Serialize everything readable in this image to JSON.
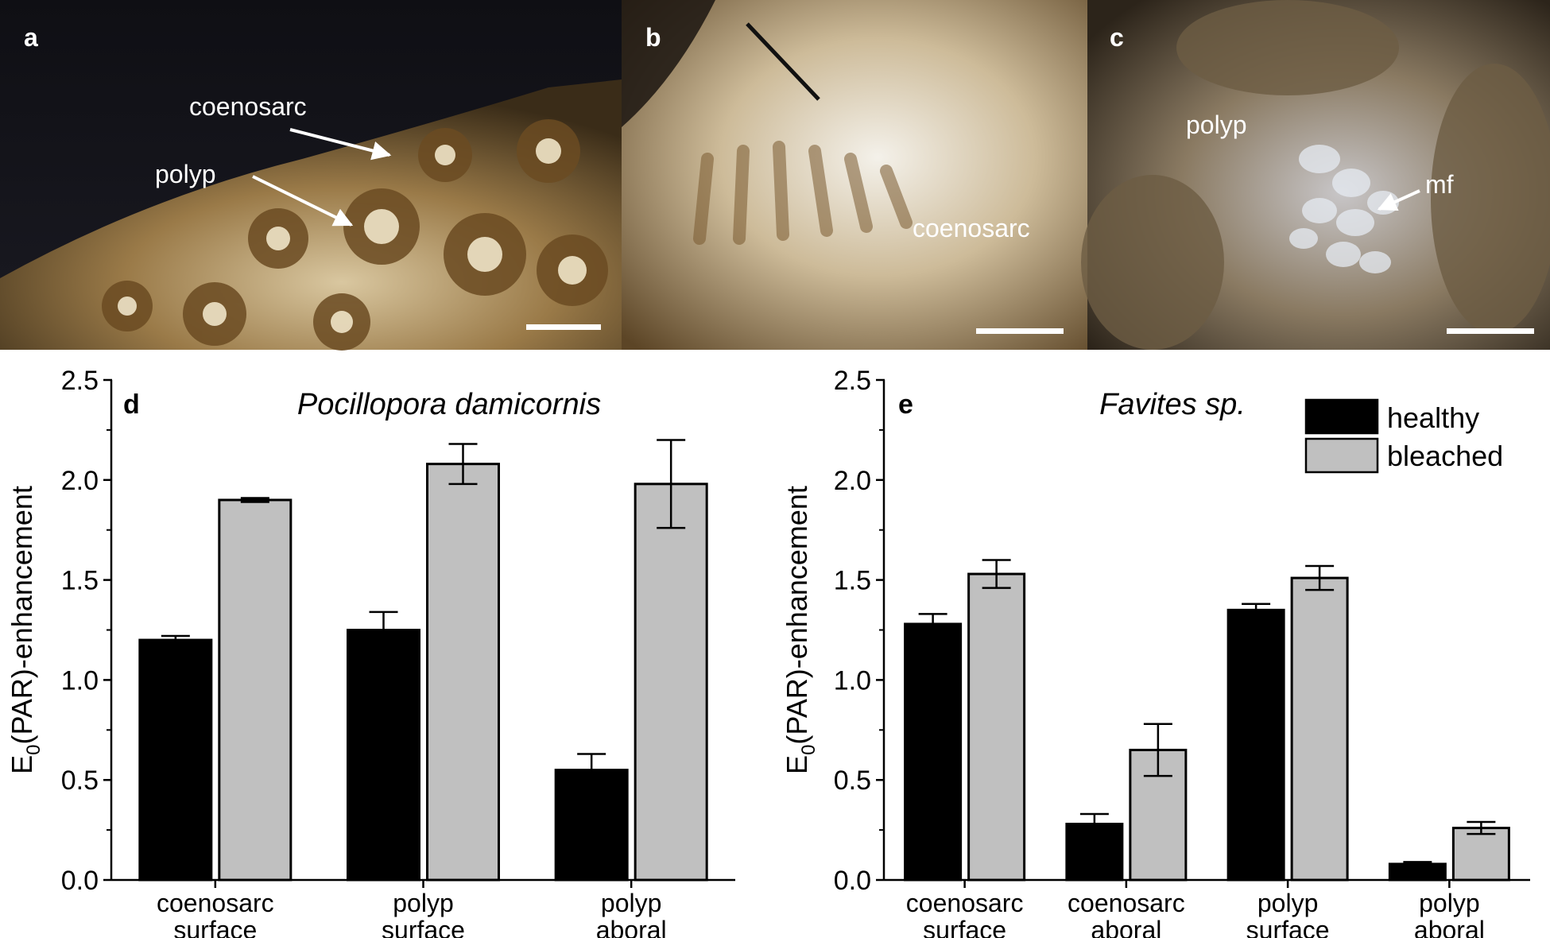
{
  "photos": [
    {
      "panel": "a",
      "labels": [
        "coenosarc",
        "polyp"
      ],
      "scale_bar": true
    },
    {
      "panel": "b",
      "labels": [
        "coenosarc"
      ],
      "scale_bar": true
    },
    {
      "panel": "c",
      "labels": [
        "polyp",
        "mf"
      ],
      "scale_bar": true
    }
  ],
  "legend": {
    "items": [
      {
        "label": "healthy",
        "color": "#000000"
      },
      {
        "label": "bleached",
        "color": "#c0c0c0"
      }
    ],
    "position": "top-right of panel e"
  },
  "chart_data": [
    {
      "panel": "d",
      "type": "bar",
      "title": "Pocillopora damicornis",
      "ylabel_main": "E",
      "ylabel_sub": "0",
      "ylabel_rest": "(PAR)-enhancement",
      "ylim": [
        0,
        2.5
      ],
      "yticks": [
        "0.0",
        "0.5",
        "1.0",
        "1.5",
        "2.0",
        "2.5"
      ],
      "categories": [
        [
          "coenosarc",
          "surface"
        ],
        [
          "polyp",
          "surface"
        ],
        [
          "polyp",
          "aboral"
        ]
      ],
      "series": [
        {
          "name": "healthy",
          "color": "#000000",
          "values": [
            1.2,
            1.25,
            0.55
          ],
          "errors": [
            0.02,
            0.09,
            0.08
          ]
        },
        {
          "name": "bleached",
          "color": "#c0c0c0",
          "values": [
            1.9,
            2.08,
            1.98
          ],
          "errors": [
            0.01,
            0.1,
            0.22
          ]
        }
      ],
      "grid": false
    },
    {
      "panel": "e",
      "type": "bar",
      "title": "Favites sp.",
      "ylabel_main": "E",
      "ylabel_sub": "0",
      "ylabel_rest": "(PAR)-enhancement",
      "ylim": [
        0,
        2.5
      ],
      "yticks": [
        "0.0",
        "0.5",
        "1.0",
        "1.5",
        "2.0",
        "2.5"
      ],
      "categories": [
        [
          "coenosarc",
          "surface"
        ],
        [
          "coenosarc",
          "aboral"
        ],
        [
          "polyp",
          "surface"
        ],
        [
          "polyp",
          "aboral"
        ]
      ],
      "series": [
        {
          "name": "healthy",
          "color": "#000000",
          "values": [
            1.28,
            0.28,
            1.35,
            0.08
          ],
          "errors": [
            0.05,
            0.05,
            0.03,
            0.01
          ]
        },
        {
          "name": "bleached",
          "color": "#c0c0c0",
          "values": [
            1.53,
            0.65,
            1.51,
            0.26
          ],
          "errors": [
            0.07,
            0.13,
            0.06,
            0.03
          ]
        }
      ],
      "grid": false
    }
  ]
}
